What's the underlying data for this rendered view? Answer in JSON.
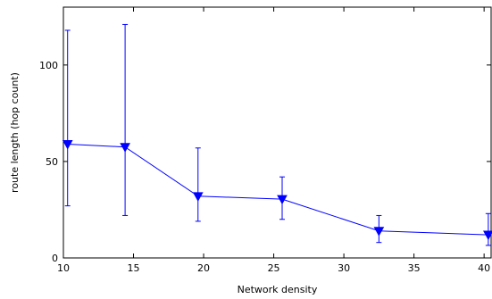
{
  "chart_data": {
    "type": "line",
    "title": "",
    "xlabel": "Network density",
    "ylabel": "route length (hop count)",
    "xlim": [
      10,
      40.5
    ],
    "ylim": [
      0,
      130
    ],
    "x_ticks": [
      "10",
      "15",
      "20",
      "25",
      "30",
      "35",
      "40"
    ],
    "y_ticks": [
      "0",
      "50",
      "100"
    ],
    "grid": false,
    "legend": "none",
    "color": "#0000ff",
    "marker": "triangle-down",
    "series": [
      {
        "x": [
          10.3,
          14.4,
          19.6,
          25.6,
          32.5,
          40.3
        ],
        "y": [
          59,
          57.5,
          32,
          30.5,
          14,
          12
        ],
        "err_low": [
          27,
          22,
          19,
          20,
          8,
          6.5
        ],
        "err_high": [
          118,
          121,
          57,
          42,
          22,
          23
        ]
      }
    ]
  }
}
